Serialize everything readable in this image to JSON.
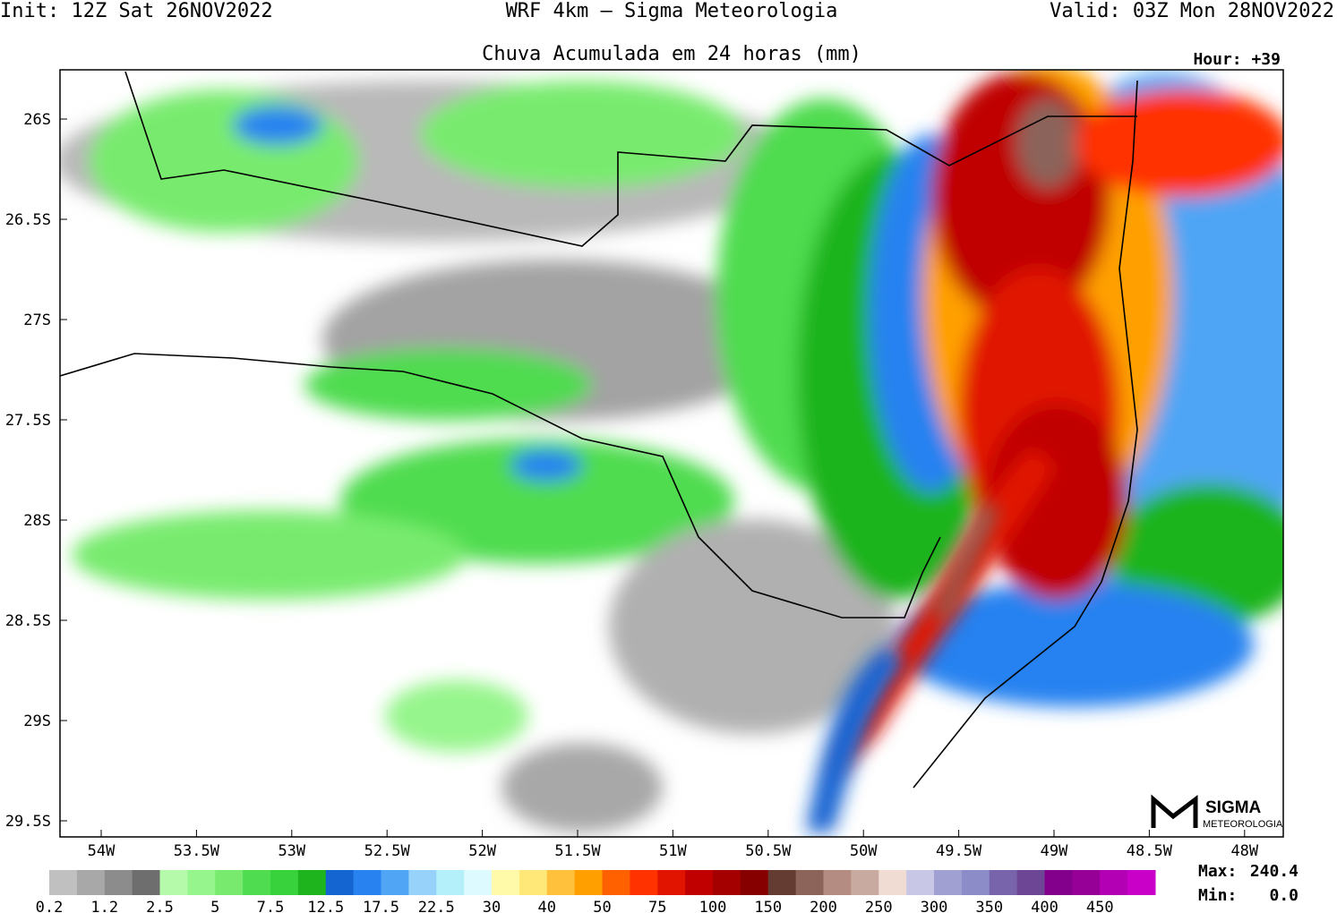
{
  "header": {
    "init": "Init: 12Z Sat 26NOV2022",
    "model": "WRF 4km — Sigma Meteorologia",
    "valid": "Valid: 03Z Mon 28NOV2022",
    "title": "Chuva Acumulada em 24 horas (mm)",
    "hour": "Hour: +39"
  },
  "map": {
    "lat_labels": [
      "26S",
      "26.5S",
      "27S",
      "27.5S",
      "28S",
      "28.5S",
      "29S",
      "29.5S"
    ],
    "lon_labels": [
      "54W",
      "53.5W",
      "53W",
      "52.5W",
      "52W",
      "51.5W",
      "51W",
      "50.5W",
      "50W",
      "49.5W",
      "49W",
      "48.5W",
      "48W"
    ]
  },
  "colorbar": {
    "colors": [
      "#c0c0c0",
      "#a8a8a8",
      "#8c8c8c",
      "#6e6e6e",
      "#b4faaa",
      "#96f58c",
      "#78eb6e",
      "#50dc50",
      "#37d23c",
      "#1eb41e",
      "#1464d2",
      "#2882f0",
      "#50a5f5",
      "#96d2fa",
      "#b4f0fa",
      "#dcfaff",
      "#fffaaa",
      "#ffe878",
      "#ffc03c",
      "#ffa000",
      "#ff6000",
      "#ff3200",
      "#e11400",
      "#c00000",
      "#a50000",
      "#870000",
      "#643c32",
      "#8c645a",
      "#b48c82",
      "#c8aaa0",
      "#f0dcd2",
      "#c8c8e6",
      "#a0a0d2",
      "#8c8cc8",
      "#7864aa",
      "#6e4696",
      "#82008c",
      "#960096",
      "#b400b4",
      "#c800c8"
    ],
    "labels": [
      "0.2",
      "1.2",
      "2.5",
      "5",
      "7.5",
      "12.5",
      "17.5",
      "22.5",
      "30",
      "40",
      "50",
      "75",
      "100",
      "150",
      "200",
      "250",
      "300",
      "350",
      "400",
      "450"
    ]
  },
  "stats": {
    "max_label": "Max:",
    "max": "240.4",
    "min_label": "Min:",
    "min": "0.0"
  },
  "logo": {
    "name": "SIGMA",
    "sub": "METEOROLOGIA"
  }
}
